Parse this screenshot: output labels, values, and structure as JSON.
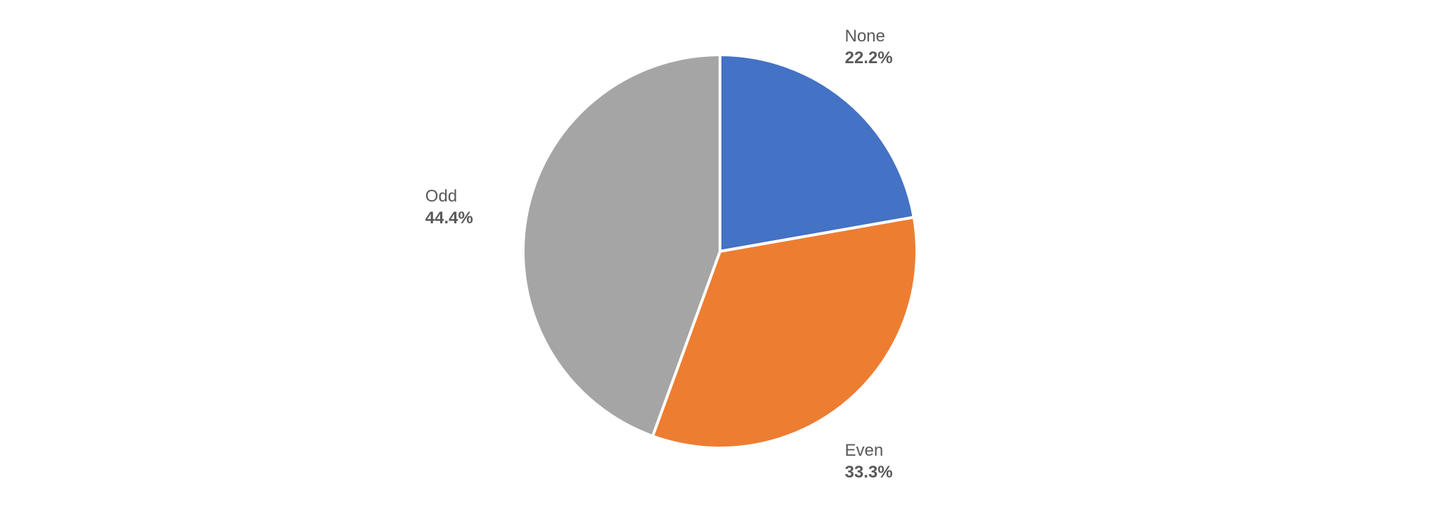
{
  "chart_data": {
    "type": "pie",
    "title": "",
    "start_angle_deg": 0,
    "direction": "clockwise",
    "slices": [
      {
        "label": "None",
        "value": 22.2,
        "value_label": "22.2%",
        "color": "#4472C4"
      },
      {
        "label": "Even",
        "value": 33.3,
        "value_label": "33.3%",
        "color": "#ED7D31"
      },
      {
        "label": "Odd",
        "value": 44.4,
        "value_label": "44.4%",
        "color": "#A5A5A5"
      }
    ],
    "slice_border_color": "#FFFFFF",
    "label_color": "#595959",
    "legend": "none"
  }
}
